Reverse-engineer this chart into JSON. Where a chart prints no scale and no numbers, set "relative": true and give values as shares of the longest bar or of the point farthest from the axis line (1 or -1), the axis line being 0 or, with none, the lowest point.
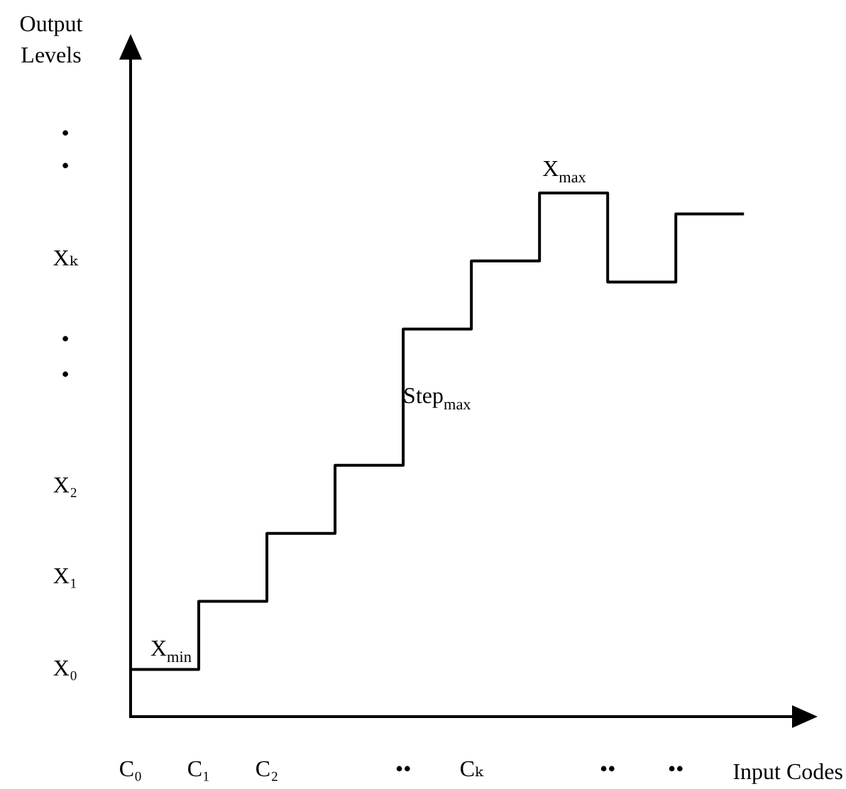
{
  "chart_data": {
    "type": "step",
    "relative": true,
    "xlabel": "Input Codes",
    "categories": [
      "C₀",
      "C₁",
      "C₂",
      null,
      "••",
      "Cₖ",
      null,
      "••",
      "••",
      null
    ],
    "series": [
      {
        "color": "#000000",
        "values": [
          0.09,
          0.22,
          0.35,
          0.48,
          0.74,
          0.87,
          1,
          0.83,
          0.96,
          0.96
        ]
      }
    ],
    "annotations": [
      "Output Levels",
      "X₀",
      "X₁",
      "X₂",
      "•",
      "•",
      "Xₖ",
      "•",
      "•",
      "X$_{min}$",
      "Step$_{max}$",
      "X$_{max}$"
    ],
    "grid": false,
    "legend": false,
    "marker": "none",
    "line_style": "solid"
  }
}
